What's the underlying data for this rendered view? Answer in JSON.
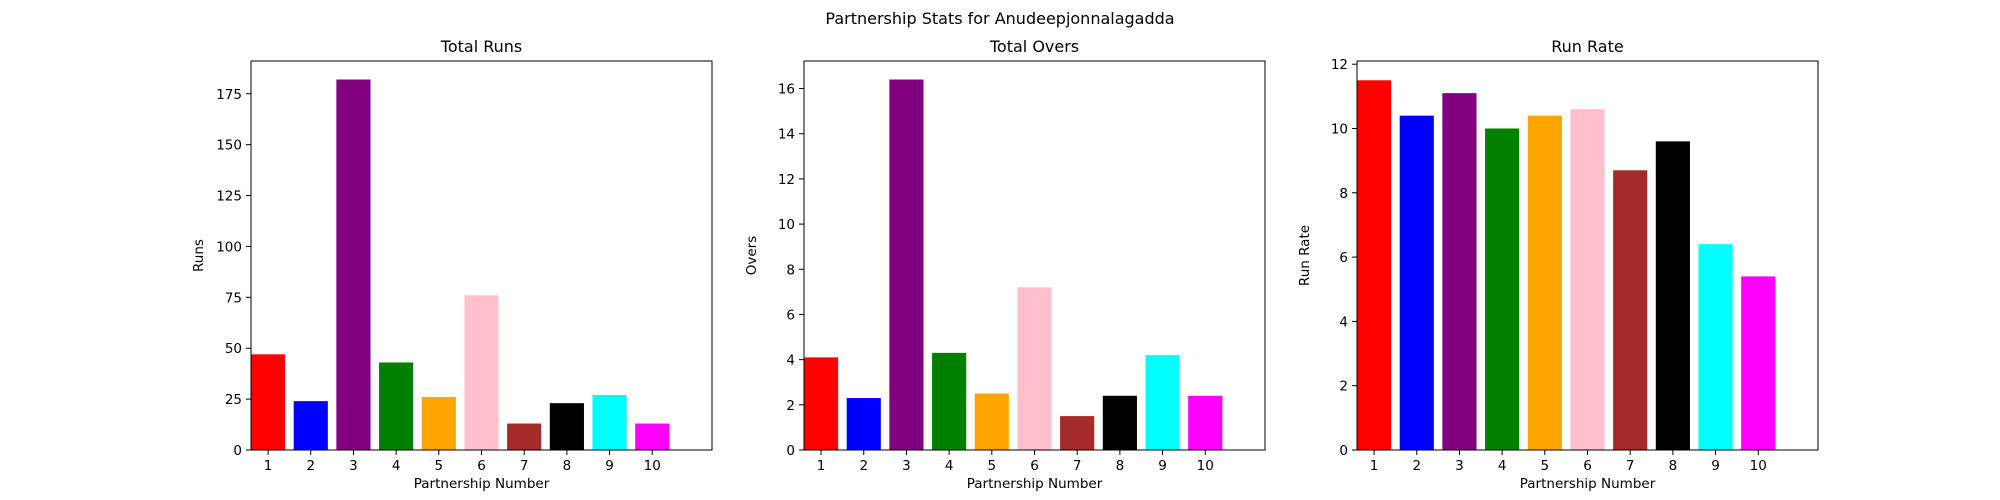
{
  "figure": {
    "suptitle": "Partnership Stats for Anudeepjonnalagadda"
  },
  "chart_data": [
    {
      "type": "bar",
      "title": "Total Runs",
      "xlabel": "Partnership Number",
      "ylabel": "Runs",
      "categories": [
        "1",
        "2",
        "3",
        "4",
        "5",
        "6",
        "7",
        "8",
        "9",
        "10"
      ],
      "values": [
        47,
        24,
        182,
        43,
        26,
        76,
        13,
        23,
        27,
        13
      ],
      "colors": [
        "#ff0000",
        "#0000ff",
        "#800080",
        "#008000",
        "#ffa500",
        "#ffc0cb",
        "#a52a2a",
        "#000000",
        "#00ffff",
        "#ff00ff"
      ],
      "ylim": [
        0,
        191.1
      ],
      "yticks": [
        0,
        25,
        50,
        75,
        100,
        125,
        150,
        175
      ],
      "grid": false
    },
    {
      "type": "bar",
      "title": "Total Overs",
      "xlabel": "Partnership Number",
      "ylabel": "Overs",
      "categories": [
        "1",
        "2",
        "3",
        "4",
        "5",
        "6",
        "7",
        "8",
        "9",
        "10"
      ],
      "values": [
        4.1,
        2.3,
        16.4,
        4.3,
        2.5,
        7.2,
        1.5,
        2.4,
        4.2,
        2.4
      ],
      "colors": [
        "#ff0000",
        "#0000ff",
        "#800080",
        "#008000",
        "#ffa500",
        "#ffc0cb",
        "#a52a2a",
        "#000000",
        "#00ffff",
        "#ff00ff"
      ],
      "ylim": [
        0,
        17.22
      ],
      "yticks": [
        0,
        2,
        4,
        6,
        8,
        10,
        12,
        14,
        16
      ],
      "grid": false
    },
    {
      "type": "bar",
      "title": "Run Rate",
      "xlabel": "Partnership Number",
      "ylabel": "Run Rate",
      "categories": [
        "1",
        "2",
        "3",
        "4",
        "5",
        "6",
        "7",
        "8",
        "9",
        "10"
      ],
      "values": [
        11.5,
        10.4,
        11.1,
        10.0,
        10.4,
        10.6,
        8.7,
        9.6,
        6.4,
        5.4
      ],
      "colors": [
        "#ff0000",
        "#0000ff",
        "#800080",
        "#008000",
        "#ffa500",
        "#ffc0cb",
        "#a52a2a",
        "#000000",
        "#00ffff",
        "#ff00ff"
      ],
      "ylim": [
        0,
        12.1
      ],
      "yticks": [
        0,
        2,
        4,
        6,
        8,
        10,
        12
      ],
      "grid": false
    }
  ]
}
